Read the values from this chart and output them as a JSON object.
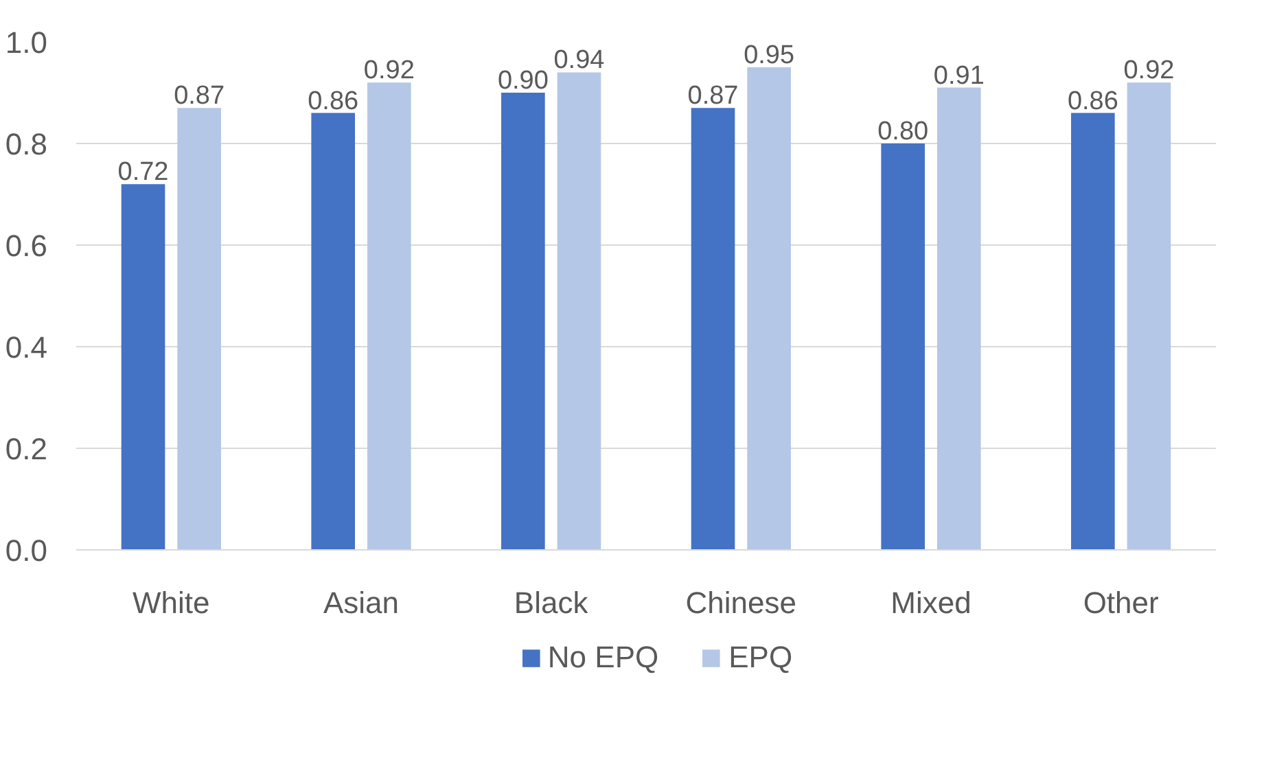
{
  "chart_data": {
    "type": "bar",
    "categories": [
      "White",
      "Asian",
      "Black",
      "Chinese",
      "Mixed",
      "Other"
    ],
    "series": [
      {
        "name": "No EPQ",
        "color": "#4472c4",
        "values": [
          0.72,
          0.86,
          0.9,
          0.87,
          0.8,
          0.86
        ],
        "value_labels": [
          "0.72",
          "0.86",
          "0.90",
          "0.87",
          "0.80",
          "0.86"
        ]
      },
      {
        "name": "EPQ",
        "color": "#b4c7e7",
        "values": [
          0.87,
          0.92,
          0.94,
          0.95,
          0.91,
          0.92
        ],
        "value_labels": [
          "0.87",
          "0.92",
          "0.94",
          "0.95",
          "0.91",
          "0.92"
        ]
      }
    ],
    "ylim": [
      0,
      1.0
    ],
    "yticks": [
      {
        "value": 0,
        "label": "0.0"
      },
      {
        "value": 0.2,
        "label": "0.2"
      },
      {
        "value": 0.4,
        "label": "0.4"
      },
      {
        "value": 0.6,
        "label": "0.6"
      },
      {
        "value": 0.8,
        "label": "0.8"
      },
      {
        "value": 1.0,
        "label": "1.0"
      }
    ],
    "grid": "y",
    "legend": "bottom"
  }
}
